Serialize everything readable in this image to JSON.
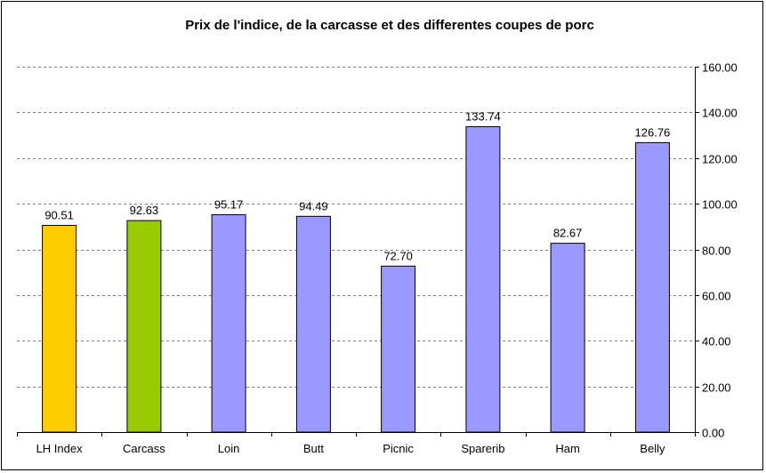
{
  "chart_data": {
    "type": "bar",
    "title": "Prix de l'indice, de la carcasse et des differentes coupes de porc",
    "xlabel": "",
    "ylabel": "",
    "ylim": [
      0,
      160
    ],
    "yticks": [
      0,
      20,
      40,
      60,
      80,
      100,
      120,
      140,
      160
    ],
    "y_axis_side": "right",
    "grid": "horizontal dashed",
    "categories": [
      "LH Index",
      "Carcass",
      "Loin",
      "Butt",
      "Picnic",
      "Sparerib",
      "Ham",
      "Belly"
    ],
    "values": [
      90.51,
      92.63,
      95.17,
      94.49,
      72.7,
      133.74,
      82.67,
      126.76
    ],
    "value_labels": [
      "90.51",
      "92.63",
      "95.17",
      "94.49",
      "72.70",
      "133.74",
      "82.67",
      "126.76"
    ],
    "bar_colors": [
      "#ffcc00",
      "#99cc00",
      "#9999ff",
      "#9999ff",
      "#9999ff",
      "#9999ff",
      "#9999ff",
      "#9999ff"
    ]
  },
  "colors": {
    "grid": "#808080",
    "axis": "#000000",
    "bar_border": "#000000"
  }
}
